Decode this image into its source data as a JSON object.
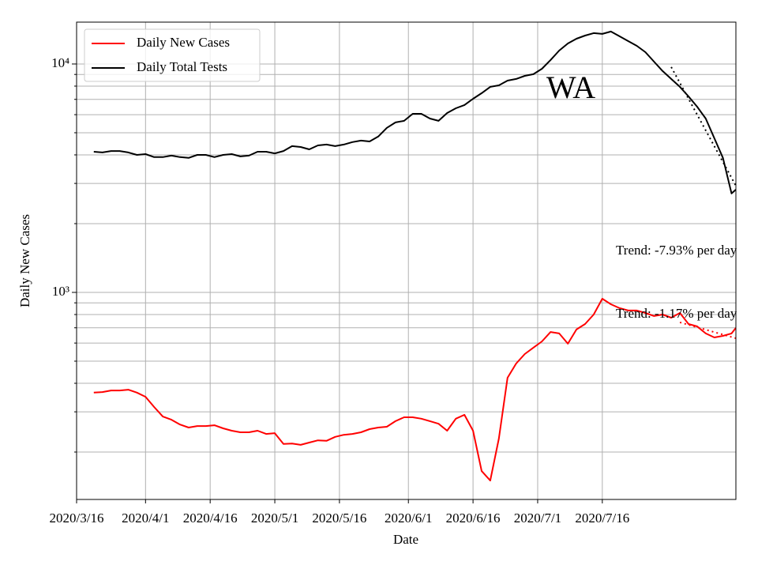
{
  "chart_data": {
    "type": "line",
    "annotation": "WA",
    "xlabel": "Date",
    "ylabel": "Daily New Cases",
    "log_y": true,
    "grid": true,
    "legend": "upper left",
    "xlim": [
      "2020-03-16",
      "2020-08-16"
    ],
    "xticks": [
      {
        "value": "2020-03-16",
        "label": "2020/3/16"
      },
      {
        "value": "2020-04-01",
        "label": "2020/4/1"
      },
      {
        "value": "2020-04-16",
        "label": "2020/4/16"
      },
      {
        "value": "2020-05-01",
        "label": "2020/5/1"
      },
      {
        "value": "2020-05-16",
        "label": "2020/5/16"
      },
      {
        "value": "2020-06-01",
        "label": "2020/6/1"
      },
      {
        "value": "2020-06-16",
        "label": "2020/6/16"
      },
      {
        "value": "2020-07-01",
        "label": "2020/7/1"
      },
      {
        "value": "2020-07-16",
        "label": "2020/7/16"
      }
    ],
    "ylim": [
      124,
      15250
    ],
    "yticks": [
      {
        "value": 1000,
        "label": "10³"
      },
      {
        "value": 10000,
        "label": "10⁴"
      }
    ],
    "yminor": [
      200,
      300,
      400,
      500,
      600,
      700,
      800,
      900,
      2000,
      3000,
      4000,
      5000,
      6000,
      7000,
      8000,
      9000
    ],
    "x": [
      "2020-03-20",
      "2020-03-22",
      "2020-03-24",
      "2020-03-26",
      "2020-03-28",
      "2020-03-30",
      "2020-04-01",
      "2020-04-03",
      "2020-04-05",
      "2020-04-07",
      "2020-04-09",
      "2020-04-11",
      "2020-04-13",
      "2020-04-15",
      "2020-04-17",
      "2020-04-19",
      "2020-04-21",
      "2020-04-23",
      "2020-04-25",
      "2020-04-27",
      "2020-04-29",
      "2020-05-01",
      "2020-05-03",
      "2020-05-05",
      "2020-05-07",
      "2020-05-09",
      "2020-05-11",
      "2020-05-13",
      "2020-05-15",
      "2020-05-17",
      "2020-05-19",
      "2020-05-21",
      "2020-05-23",
      "2020-05-25",
      "2020-05-27",
      "2020-05-29",
      "2020-05-31",
      "2020-06-02",
      "2020-06-04",
      "2020-06-06",
      "2020-06-08",
      "2020-06-10",
      "2020-06-12",
      "2020-06-14",
      "2020-06-16",
      "2020-06-18",
      "2020-06-20",
      "2020-06-22",
      "2020-06-24",
      "2020-06-26",
      "2020-06-28",
      "2020-06-30",
      "2020-07-02",
      "2020-07-04",
      "2020-07-06",
      "2020-07-08",
      "2020-07-10",
      "2020-07-12",
      "2020-07-14",
      "2020-07-16",
      "2020-07-18",
      "2020-07-20",
      "2020-07-22",
      "2020-07-24",
      "2020-07-26",
      "2020-07-28",
      "2020-07-30",
      "2020-08-01",
      "2020-08-03",
      "2020-08-05",
      "2020-08-07",
      "2020-08-09",
      "2020-08-11",
      "2020-08-13",
      "2020-08-15",
      "2020-08-16"
    ],
    "series": [
      {
        "name": "Daily New Cases",
        "color": "#ff0000",
        "values": [
          364,
          366,
          372,
          372,
          375,
          364,
          349,
          315,
          286,
          277,
          264,
          256,
          260,
          260,
          262,
          254,
          248,
          244,
          244,
          248,
          240,
          242,
          217,
          218,
          215,
          220,
          225,
          224,
          233,
          238,
          240,
          244,
          252,
          256,
          258,
          273,
          284,
          284,
          280,
          273,
          266,
          248,
          280,
          291,
          248,
          165,
          150,
          229,
          423,
          488,
          537,
          573,
          610,
          671,
          661,
          596,
          688,
          727,
          800,
          938,
          887,
          853,
          833,
          833,
          813,
          788,
          800,
          775,
          813,
          727,
          710,
          661,
          635,
          645,
          661,
          699
        ]
      },
      {
        "name": "Daily Total Tests",
        "color": "#000000",
        "values": [
          4130,
          4100,
          4160,
          4160,
          4100,
          4000,
          4030,
          3910,
          3910,
          3970,
          3910,
          3880,
          4000,
          4000,
          3910,
          4000,
          4030,
          3940,
          3970,
          4130,
          4130,
          4060,
          4160,
          4370,
          4330,
          4230,
          4400,
          4440,
          4370,
          4440,
          4550,
          4620,
          4580,
          4810,
          5250,
          5550,
          5640,
          6050,
          6050,
          5770,
          5640,
          6100,
          6400,
          6610,
          7040,
          7450,
          7940,
          8060,
          8460,
          8600,
          8870,
          9020,
          9530,
          10410,
          11450,
          12300,
          12900,
          13320,
          13650,
          13540,
          13870,
          13220,
          12600,
          12010,
          11270,
          10240,
          9310,
          8600,
          7940,
          7210,
          6500,
          5770,
          4730,
          3880,
          2710,
          2820
        ]
      }
    ],
    "trends": [
      {
        "label": "Trend: -7.93% per day",
        "color": "#000000",
        "x": [
          "2020-08-01",
          "2020-08-16"
        ],
        "values": [
          9700,
          2930
        ]
      },
      {
        "label": "Trend: -1.17% per day",
        "color": "#ff0000",
        "x": [
          "2020-08-03",
          "2020-08-16"
        ],
        "values": [
          739,
          630
        ]
      }
    ]
  }
}
